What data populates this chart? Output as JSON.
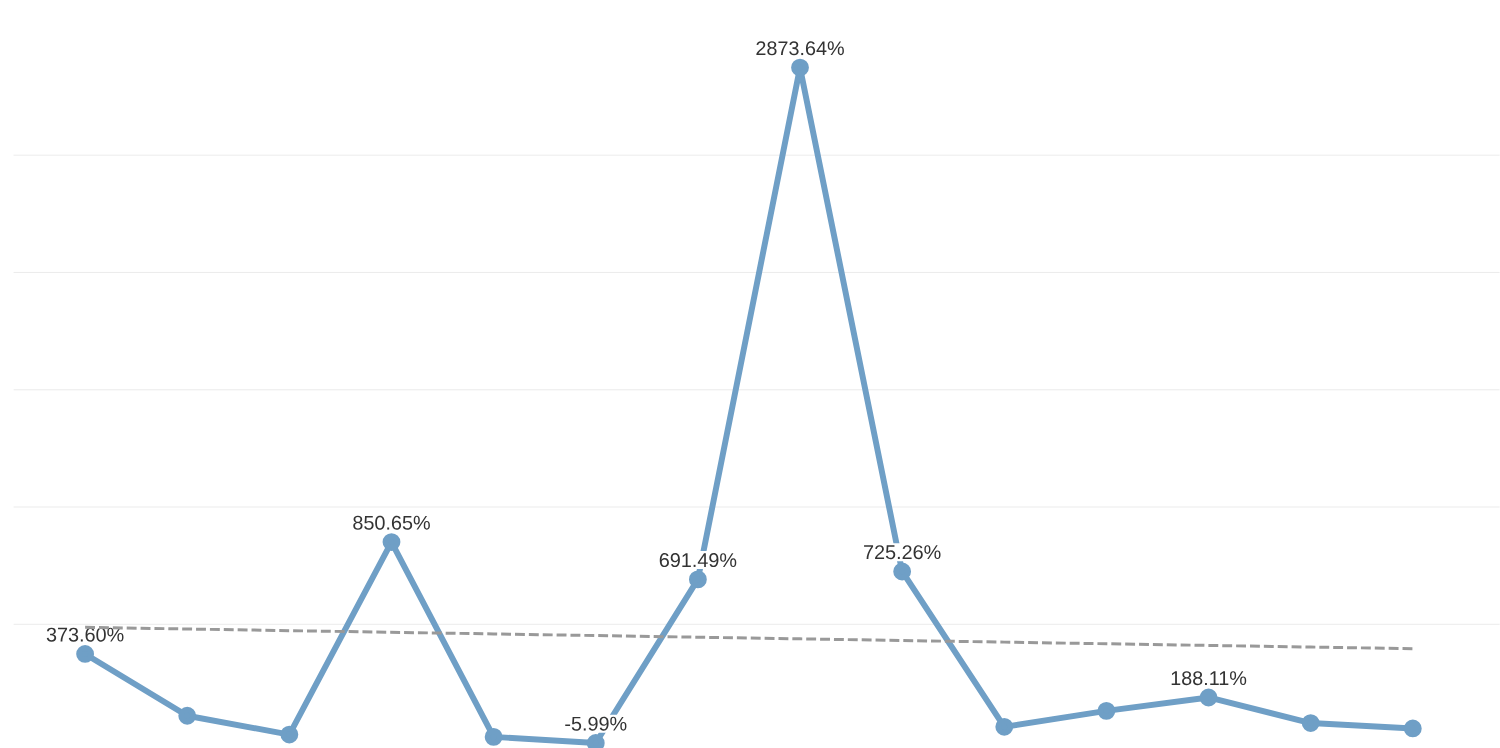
{
  "chart_data": {
    "type": "line",
    "categories": [
      null,
      null,
      null,
      null,
      null,
      null,
      null,
      null,
      null,
      null,
      null,
      null,
      null,
      null
    ],
    "series": [
      {
        "color": "#6f9fc6",
        "values": [
          373.6,
          110,
          30,
          850.65,
          20,
          -5.99,
          691.49,
          2873.64,
          725.26,
          63,
          131,
          188.11,
          79,
          56
        ],
        "value_labels": [
          "373.60%",
          null,
          null,
          "850.65%",
          null,
          "-5.99%",
          "691.49%",
          "2873.64%",
          "725.26%",
          null,
          null,
          "188.11%",
          null,
          null
        ],
        "marker": "circle",
        "line_style": "solid"
      },
      {
        "type": "line",
        "color": "#999999",
        "values": [
          487,
          480,
          473,
          466,
          459,
          452,
          445,
          438,
          431,
          424,
          417,
          410,
          403,
          396
        ],
        "line_style": "dashed",
        "marker": "none"
      }
    ],
    "yticks": [
      {
        "value": 500,
        "label": null
      },
      {
        "value": 1000,
        "label": null
      },
      {
        "value": 1500,
        "label": null
      },
      {
        "value": 2000,
        "label": null
      },
      {
        "value": 2500,
        "label": null
      }
    ],
    "grid": "y"
  }
}
